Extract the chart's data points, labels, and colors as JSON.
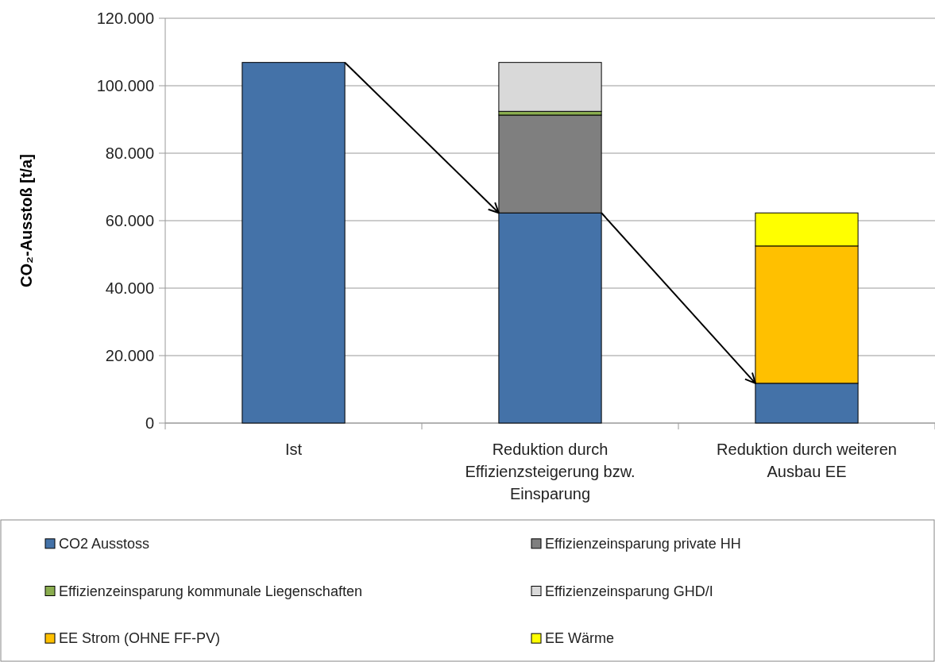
{
  "chart_data": {
    "type": "bar",
    "stacked": true,
    "ylabel": "CO₂-Ausstoß [t/a]",
    "categories": [
      "Ist",
      "Reduktion durch Effizienzsteigerung bzw. Einsparung",
      "Reduktion durch weiteren Ausbau EE"
    ],
    "series": [
      {
        "name": "CO2 Ausstoss",
        "color": "#4472a8",
        "values": [
          106900,
          62300,
          11800
        ]
      },
      {
        "name": "Effizienzeinsparung private HH",
        "color": "#7f7f7f",
        "values": [
          null,
          29000,
          null
        ]
      },
      {
        "name": "Effizienzeinsparung kommunale Liegenschaften",
        "color": "#8aad4f",
        "values": [
          null,
          1100,
          null
        ]
      },
      {
        "name": "Effizienzeinsparung GHD/I",
        "color": "#d9d9d9",
        "values": [
          null,
          14500,
          null
        ]
      },
      {
        "name": "EE Strom (OHNE FF-PV)",
        "color": "#ffc000",
        "values": [
          null,
          null,
          40700
        ]
      },
      {
        "name": "EE Wärme",
        "color": "#ffff00",
        "values": [
          null,
          null,
          9800
        ]
      }
    ],
    "ylim": [
      0,
      120000
    ],
    "yticks": [
      {
        "value": 0,
        "label": "0"
      },
      {
        "value": 20000,
        "label": "20.000"
      },
      {
        "value": 40000,
        "label": "40.000"
      },
      {
        "value": 60000,
        "label": "60.000"
      },
      {
        "value": 80000,
        "label": "80.000"
      },
      {
        "value": 100000,
        "label": "100.000"
      },
      {
        "value": 120000,
        "label": "120.000"
      }
    ],
    "grid": "y",
    "legend": "bottom"
  }
}
